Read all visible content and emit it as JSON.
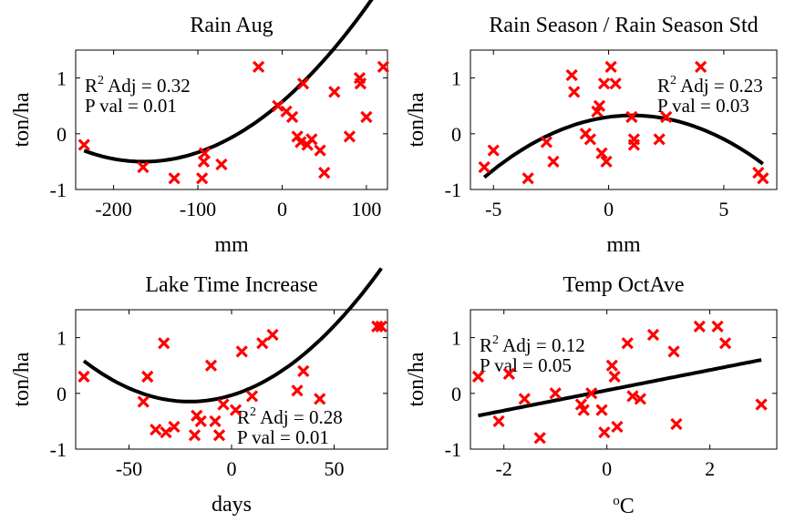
{
  "chart_data": [
    {
      "type": "scatter",
      "title": "Rain Aug",
      "xlabel": "mm",
      "ylabel": "ton/ha",
      "xlim": [
        -245,
        125
      ],
      "ylim": [
        -1,
        1.5
      ],
      "xticks": [
        -200,
        -100,
        0,
        100
      ],
      "yticks": [
        -1,
        0,
        1
      ],
      "annotation": {
        "r2_prefix": "R",
        "r2_sup": "2",
        "r2_rest": " Adj = 0.32",
        "pval": "P val = 0.01",
        "pos": "top-left"
      },
      "points": {
        "x": [
          -235,
          -165,
          -128,
          -95,
          -93,
          -92,
          -72,
          -28,
          -5,
          5,
          12,
          18,
          22,
          25,
          30,
          35,
          45,
          50,
          62,
          80,
          92,
          93,
          100,
          120
        ],
        "y": [
          -0.2,
          -0.6,
          -0.8,
          -0.8,
          -0.5,
          -0.35,
          -0.55,
          1.2,
          0.5,
          0.4,
          0.3,
          -0.05,
          -0.15,
          0.9,
          -0.2,
          -0.1,
          -0.3,
          -0.7,
          0.75,
          -0.05,
          1.0,
          0.9,
          0.3,
          1.2
        ]
      },
      "fit": {
        "x_range": [
          -235,
          120
        ],
        "coef": [
          3.97e-05,
          0.01306,
          0.5735
        ]
      }
    },
    {
      "type": "scatter",
      "title": "Rain Season / Rain Season Std",
      "xlabel": "mm",
      "ylabel": "ton/ha",
      "xlim": [
        -6,
        7.3
      ],
      "ylim": [
        -1,
        1.5
      ],
      "xticks": [
        -5,
        0,
        5
      ],
      "yticks": [
        -1,
        0,
        1
      ],
      "annotation": {
        "r2_prefix": "R",
        "r2_sup": "2",
        "r2_rest": " Adj = 0.23",
        "pval": "P val = 0.03",
        "pos": "top-right"
      },
      "points": {
        "x": [
          -5.4,
          -5.0,
          -3.5,
          -2.7,
          -2.4,
          -1.6,
          -1.5,
          -1.0,
          -0.8,
          -0.5,
          -0.4,
          -0.3,
          -0.2,
          -0.1,
          0.1,
          0.3,
          1.0,
          1.1,
          1.1,
          2.2,
          2.5,
          4.0,
          6.5,
          6.7
        ],
        "y": [
          -0.6,
          -0.3,
          -0.8,
          -0.15,
          -0.5,
          1.05,
          0.75,
          0.0,
          -0.1,
          0.4,
          0.5,
          -0.35,
          0.9,
          -0.5,
          1.2,
          0.9,
          0.3,
          -0.2,
          -0.1,
          -0.1,
          0.3,
          1.2,
          -0.7,
          -0.8
        ]
      },
      "fit": {
        "x_range": [
          -5.4,
          6.7
        ],
        "coef": [
          -0.0269,
          0.055,
          0.3
        ]
      }
    },
    {
      "type": "scatter",
      "title": "Lake Time Increase",
      "xlabel": "days",
      "ylabel": "ton/ha",
      "xlim": [
        -76,
        76
      ],
      "ylim": [
        -1,
        1.5
      ],
      "xticks": [
        -50,
        0,
        50
      ],
      "yticks": [
        -1,
        0,
        1
      ],
      "annotation": {
        "r2_prefix": "R",
        "r2_sup": "2",
        "r2_rest": " Adj = 0.28",
        "pval": "P val = 0.01",
        "pos": "bottom-right"
      },
      "points": {
        "x": [
          -72,
          -43,
          -41,
          -37,
          -33,
          -32,
          -28,
          -18,
          -17,
          -15,
          -10,
          -8,
          -6,
          -4,
          2,
          5,
          10,
          15,
          20,
          32,
          35,
          43,
          71,
          73
        ],
        "y": [
          0.3,
          -0.15,
          0.3,
          -0.65,
          0.9,
          -0.7,
          -0.6,
          -0.75,
          -0.4,
          -0.5,
          0.5,
          -0.5,
          -0.75,
          -0.2,
          -0.3,
          0.75,
          -0.05,
          0.9,
          1.05,
          0.05,
          0.4,
          -0.1,
          1.2,
          1.2
        ]
      },
      "fit": {
        "x_range": [
          -72,
          73
        ],
        "coef": [
          0.000274,
          0.01118,
          -0.0335
        ]
      }
    },
    {
      "type": "scatter",
      "title": "Temp OctAve",
      "xlabel": "oC",
      "xlabel_sup": "o",
      "xlabel_rest": "C",
      "ylabel": "ton/ha",
      "xlim": [
        -2.65,
        3.3
      ],
      "ylim": [
        -1,
        1.5
      ],
      "xticks": [
        -2,
        0,
        2
      ],
      "yticks": [
        -1,
        0,
        1
      ],
      "annotation": {
        "r2_prefix": "R",
        "r2_sup": "2",
        "r2_rest": " Adj = 0.12",
        "pval": "P val = 0.05",
        "pos": "top-left"
      },
      "points": {
        "x": [
          -2.5,
          -2.1,
          -1.9,
          -1.6,
          -1.3,
          -1.0,
          -0.5,
          -0.45,
          -0.3,
          -0.1,
          -0.05,
          0.1,
          0.15,
          0.2,
          0.4,
          0.5,
          0.65,
          0.9,
          1.3,
          1.35,
          1.8,
          2.15,
          2.3,
          3.0
        ],
        "y": [
          0.3,
          -0.5,
          0.35,
          -0.1,
          -0.8,
          0.0,
          -0.2,
          -0.3,
          0.0,
          -0.3,
          -0.7,
          0.5,
          0.3,
          -0.6,
          0.9,
          -0.05,
          -0.1,
          1.05,
          0.75,
          -0.55,
          1.2,
          1.2,
          0.9,
          -0.2
        ]
      },
      "fit": {
        "x_range": [
          -2.5,
          3.0
        ],
        "coef": [
          0,
          0.1818,
          0.055
        ]
      }
    }
  ]
}
